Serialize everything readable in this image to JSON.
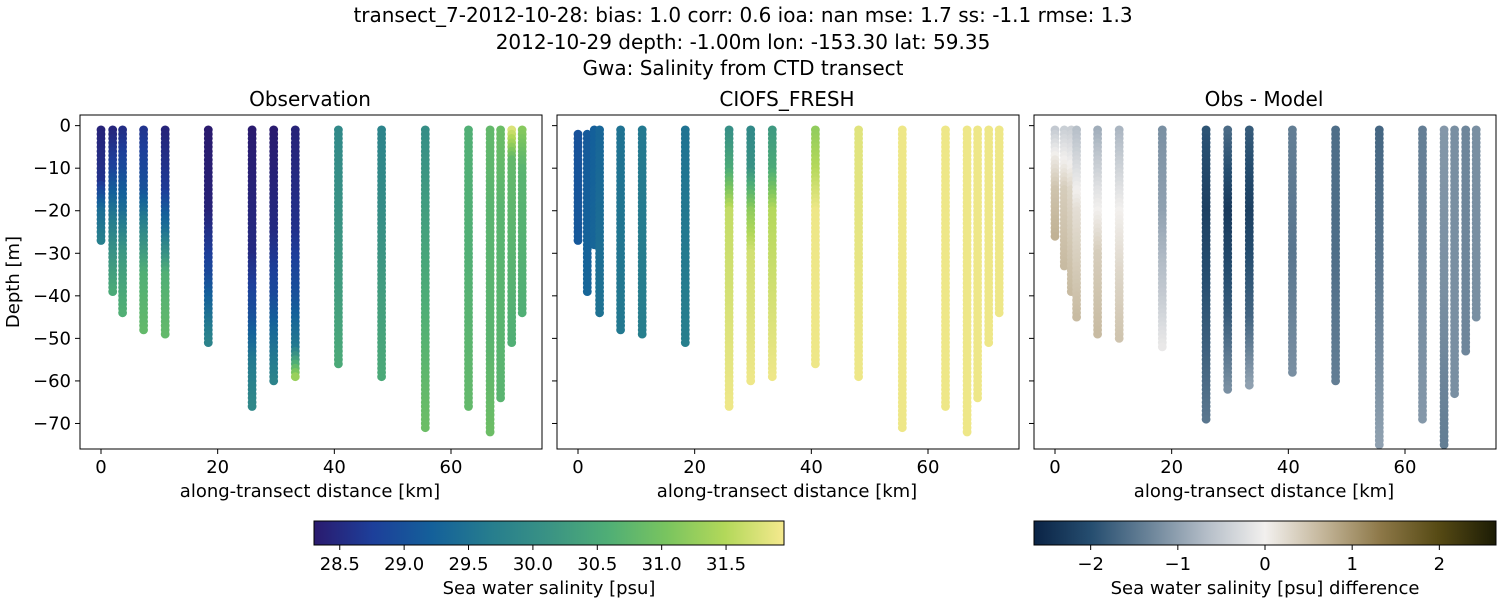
{
  "figure": {
    "title_line1": "transect_7-2012-10-28: bias: 1.0  corr: 0.6  ioa: nan  mse: 1.7  ss: -1.1  rmse: 1.3",
    "title_line2": "2012-10-29 depth: -1.00m lon: -153.30 lat: 59.35",
    "title_line3": "Gwa: Salinity from CTD transect"
  },
  "chart_data": [
    {
      "type": "scatter",
      "title": "Observation",
      "xlabel": "along-transect distance [km]",
      "ylabel": "Depth [m]",
      "xlim": [
        -3.6,
        75.6
      ],
      "ylim": [
        -76,
        2.5
      ],
      "xticks": [
        0,
        20,
        40,
        60
      ],
      "yticks": [
        0,
        -10,
        -20,
        -30,
        -40,
        -50,
        -60,
        -70
      ],
      "colorbar": "salinity",
      "profiles": [
        {
          "x": 0.0,
          "ybottom": -27,
          "stops": [
            [
              0,
              28.4
            ],
            [
              13,
              28.6
            ],
            [
              20,
              29.4
            ],
            [
              27,
              29.7
            ]
          ]
        },
        {
          "x": 2.0,
          "ybottom": -39,
          "stops": [
            [
              0,
              28.4
            ],
            [
              10,
              28.8
            ],
            [
              20,
              29.5
            ],
            [
              30,
              30.1
            ],
            [
              39,
              30.5
            ]
          ]
        },
        {
          "x": 3.7,
          "ybottom": -44,
          "stops": [
            [
              0,
              28.5
            ],
            [
              10,
              28.9
            ],
            [
              20,
              29.4
            ],
            [
              30,
              30.2
            ],
            [
              44,
              30.6
            ]
          ]
        },
        {
          "x": 7.3,
          "ybottom": -48,
          "stops": [
            [
              0,
              28.6
            ],
            [
              15,
              29.0
            ],
            [
              25,
              29.9
            ],
            [
              35,
              30.6
            ],
            [
              48,
              30.8
            ]
          ]
        },
        {
          "x": 11.0,
          "ybottom": -49,
          "stops": [
            [
              0,
              28.4
            ],
            [
              15,
              28.7
            ],
            [
              25,
              29.5
            ],
            [
              35,
              30.6
            ],
            [
              49,
              30.8
            ]
          ]
        },
        {
          "x": 18.4,
          "ybottom": -51,
          "stops": [
            [
              0,
              28.3
            ],
            [
              20,
              28.4
            ],
            [
              35,
              28.9
            ],
            [
              45,
              29.5
            ],
            [
              51,
              29.8
            ]
          ]
        },
        {
          "x": 25.9,
          "ybottom": -66,
          "stops": [
            [
              0,
              28.3
            ],
            [
              30,
              28.5
            ],
            [
              45,
              29.0
            ],
            [
              55,
              29.6
            ],
            [
              66,
              29.9
            ]
          ]
        },
        {
          "x": 29.6,
          "ybottom": -60,
          "stops": [
            [
              0,
              28.3
            ],
            [
              25,
              28.5
            ],
            [
              40,
              28.9
            ],
            [
              50,
              29.4
            ],
            [
              60,
              29.8
            ]
          ]
        },
        {
          "x": 33.3,
          "ybottom": -59,
          "stops": [
            [
              0,
              28.4
            ],
            [
              25,
              28.6
            ],
            [
              40,
              29.0
            ],
            [
              52,
              29.6
            ],
            [
              59,
              31.3
            ]
          ]
        },
        {
          "x": 40.7,
          "ybottom": -56,
          "stops": [
            [
              0,
              29.9
            ],
            [
              20,
              30.1
            ],
            [
              40,
              30.3
            ],
            [
              56,
              30.5
            ]
          ]
        },
        {
          "x": 48.1,
          "ybottom": -59,
          "stops": [
            [
              0,
              29.8
            ],
            [
              20,
              30.0
            ],
            [
              40,
              30.3
            ],
            [
              59,
              30.5
            ]
          ]
        },
        {
          "x": 55.6,
          "ybottom": -71,
          "stops": [
            [
              0,
              30.0
            ],
            [
              20,
              30.3
            ],
            [
              45,
              30.6
            ],
            [
              71,
              30.9
            ]
          ]
        },
        {
          "x": 63.0,
          "ybottom": -66,
          "stops": [
            [
              0,
              30.6
            ],
            [
              30,
              30.6
            ],
            [
              66,
              30.8
            ]
          ]
        },
        {
          "x": 66.7,
          "ybottom": -72,
          "stops": [
            [
              0,
              30.8
            ],
            [
              20,
              30.7
            ],
            [
              50,
              30.7
            ],
            [
              72,
              30.9
            ]
          ]
        },
        {
          "x": 68.5,
          "ybottom": -64,
          "stops": [
            [
              0,
              30.9
            ],
            [
              20,
              30.7
            ],
            [
              64,
              30.7
            ]
          ]
        },
        {
          "x": 70.4,
          "ybottom": -51,
          "stops": [
            [
              0,
              31.9
            ],
            [
              8,
              30.8
            ],
            [
              51,
              30.6
            ]
          ]
        },
        {
          "x": 72.2,
          "ybottom": -44,
          "stops": [
            [
              0,
              31.2
            ],
            [
              10,
              30.7
            ],
            [
              44,
              30.6
            ]
          ]
        }
      ]
    },
    {
      "type": "scatter",
      "title": "CIOFS_FRESH",
      "xlabel": "along-transect distance [km]",
      "xlim": [
        -3.6,
        75.6
      ],
      "ylim": [
        -76,
        2.5
      ],
      "xticks": [
        0,
        20,
        40,
        60
      ],
      "colorbar": "salinity",
      "profiles": [
        {
          "x": 0.0,
          "ytop": -2,
          "ybottom": -27,
          "stops": [
            [
              0,
              29.0
            ],
            [
              27,
              29.1
            ]
          ]
        },
        {
          "x": 1.6,
          "ytop": -2,
          "ybottom": -39,
          "stops": [
            [
              0,
              29.1
            ],
            [
              39,
              29.3
            ]
          ]
        },
        {
          "x": 2.8,
          "ytop": -1,
          "ybottom": -28,
          "stops": [
            [
              0,
              29.2
            ],
            [
              28,
              29.3
            ]
          ]
        },
        {
          "x": 3.7,
          "ybottom": -44,
          "stops": [
            [
              0,
              29.3
            ],
            [
              44,
              29.5
            ]
          ]
        },
        {
          "x": 7.3,
          "ybottom": -48,
          "stops": [
            [
              0,
              29.5
            ],
            [
              48,
              29.6
            ]
          ]
        },
        {
          "x": 11.0,
          "ybottom": -49,
          "stops": [
            [
              0,
              29.6
            ],
            [
              49,
              29.7
            ]
          ]
        },
        {
          "x": 18.4,
          "ybottom": -51,
          "stops": [
            [
              0,
              29.5
            ],
            [
              51,
              29.7
            ]
          ]
        },
        {
          "x": 25.9,
          "ybottom": -66,
          "stops": [
            [
              0,
              30.0
            ],
            [
              10,
              30.5
            ],
            [
              20,
              31.6
            ],
            [
              66,
              31.9
            ]
          ]
        },
        {
          "x": 29.6,
          "ybottom": -60,
          "stops": [
            [
              0,
              29.9
            ],
            [
              10,
              30.1
            ],
            [
              20,
              31.2
            ],
            [
              30,
              31.7
            ],
            [
              60,
              31.9
            ]
          ]
        },
        {
          "x": 33.3,
          "ybottom": -59,
          "stops": [
            [
              0,
              30.2
            ],
            [
              10,
              30.5
            ],
            [
              20,
              31.5
            ],
            [
              59,
              31.9
            ]
          ]
        },
        {
          "x": 40.7,
          "ybottom": -56,
          "stops": [
            [
              0,
              31.2
            ],
            [
              10,
              31.5
            ],
            [
              20,
              31.9
            ],
            [
              56,
              31.9
            ]
          ]
        },
        {
          "x": 48.1,
          "ybottom": -59,
          "stops": [
            [
              0,
              31.8
            ],
            [
              59,
              31.9
            ]
          ]
        },
        {
          "x": 55.6,
          "ybottom": -71,
          "stops": [
            [
              0,
              31.9
            ],
            [
              71,
              31.9
            ]
          ]
        },
        {
          "x": 63.0,
          "ybottom": -66,
          "stops": [
            [
              0,
              31.9
            ],
            [
              66,
              31.9
            ]
          ]
        },
        {
          "x": 66.7,
          "ybottom": -72,
          "stops": [
            [
              0,
              31.9
            ],
            [
              72,
              31.9
            ]
          ]
        },
        {
          "x": 68.5,
          "ybottom": -64,
          "stops": [
            [
              0,
              31.9
            ],
            [
              64,
              31.9
            ]
          ]
        },
        {
          "x": 70.4,
          "ybottom": -51,
          "stops": [
            [
              0,
              31.9
            ],
            [
              51,
              31.9
            ]
          ]
        },
        {
          "x": 72.2,
          "ybottom": -44,
          "stops": [
            [
              0,
              31.9
            ],
            [
              44,
              31.9
            ]
          ]
        }
      ]
    },
    {
      "type": "scatter",
      "title": "Obs - Model",
      "xlabel": "along-transect distance [km]",
      "xlim": [
        -3.6,
        75.6
      ],
      "ylim": [
        -76,
        2.5
      ],
      "xticks": [
        0,
        20,
        40,
        60
      ],
      "colorbar": "difference",
      "profiles": [
        {
          "x": 0.0,
          "ybottom": -26,
          "stops": [
            [
              0,
              -0.6
            ],
            [
              8,
              0.1
            ],
            [
              15,
              0.5
            ],
            [
              26,
              0.7
            ]
          ]
        },
        {
          "x": 1.6,
          "ybottom": -33,
          "stops": [
            [
              0,
              -0.5
            ],
            [
              15,
              0.4
            ],
            [
              33,
              0.6
            ]
          ]
        },
        {
          "x": 2.8,
          "ybottom": -39,
          "stops": [
            [
              0,
              -0.5
            ],
            [
              15,
              0.3
            ],
            [
              39,
              0.6
            ]
          ]
        },
        {
          "x": 3.7,
          "ybottom": -45,
          "stops": [
            [
              0,
              -0.7
            ],
            [
              20,
              0.2
            ],
            [
              45,
              0.6
            ]
          ]
        },
        {
          "x": 7.3,
          "ybottom": -49,
          "stops": [
            [
              0,
              -0.9
            ],
            [
              15,
              -0.2
            ],
            [
              30,
              0.4
            ],
            [
              49,
              0.6
            ]
          ]
        },
        {
          "x": 11.0,
          "ybottom": -50,
          "stops": [
            [
              0,
              -0.8
            ],
            [
              20,
              0.0
            ],
            [
              35,
              0.3
            ],
            [
              50,
              0.5
            ]
          ]
        },
        {
          "x": 18.4,
          "ybottom": -52,
          "stops": [
            [
              0,
              -1.2
            ],
            [
              20,
              -1.0
            ],
            [
              40,
              -0.5
            ],
            [
              52,
              -0.1
            ]
          ]
        },
        {
          "x": 25.9,
          "ybottom": -69,
          "stops": [
            [
              0,
              -1.9
            ],
            [
              20,
              -2.2
            ],
            [
              50,
              -1.8
            ],
            [
              69,
              -1.5
            ]
          ]
        },
        {
          "x": 29.6,
          "ybottom": -62,
          "stops": [
            [
              0,
              -1.6
            ],
            [
              20,
              -2.3
            ],
            [
              45,
              -1.8
            ],
            [
              62,
              -1.2
            ]
          ]
        },
        {
          "x": 33.3,
          "ybottom": -61,
          "stops": [
            [
              0,
              -1.8
            ],
            [
              20,
              -2.2
            ],
            [
              45,
              -1.7
            ],
            [
              61,
              -1.0
            ]
          ]
        },
        {
          "x": 40.7,
          "ybottom": -58,
          "stops": [
            [
              0,
              -1.4
            ],
            [
              30,
              -1.5
            ],
            [
              58,
              -1.2
            ]
          ]
        },
        {
          "x": 48.1,
          "ybottom": -60,
          "stops": [
            [
              0,
              -1.6
            ],
            [
              30,
              -1.6
            ],
            [
              60,
              -1.4
            ]
          ]
        },
        {
          "x": 55.6,
          "ybottom": -75,
          "stops": [
            [
              0,
              -1.7
            ],
            [
              30,
              -1.5
            ],
            [
              75,
              -1.0
            ]
          ]
        },
        {
          "x": 63.0,
          "ybottom": -69,
          "stops": [
            [
              0,
              -1.4
            ],
            [
              30,
              -1.3
            ],
            [
              69,
              -1.1
            ]
          ]
        },
        {
          "x": 66.7,
          "ybottom": -75,
          "stops": [
            [
              0,
              -1.1
            ],
            [
              40,
              -1.2
            ],
            [
              75,
              -1.4
            ]
          ]
        },
        {
          "x": 68.5,
          "ybottom": -63,
          "stops": [
            [
              0,
              -1.2
            ],
            [
              30,
              -1.2
            ],
            [
              63,
              -1.2
            ]
          ]
        },
        {
          "x": 70.4,
          "ybottom": -53,
          "stops": [
            [
              0,
              -1.3
            ],
            [
              30,
              -1.3
            ],
            [
              53,
              -1.3
            ]
          ]
        },
        {
          "x": 72.2,
          "ybottom": -45,
          "stops": [
            [
              0,
              -1.2
            ],
            [
              45,
              -1.2
            ]
          ]
        }
      ]
    }
  ],
  "colorbars": {
    "salinity": {
      "label": "Sea water salinity [psu]",
      "min": 28.3,
      "max": 31.95,
      "ticks": [
        28.5,
        29.0,
        29.5,
        30.0,
        30.5,
        31.0,
        31.5
      ],
      "tick_labels": [
        "28.5",
        "29.0",
        "29.5",
        "30.0",
        "30.5",
        "31.0",
        "31.5"
      ],
      "colors": [
        "#2a1a6e",
        "#1d3f9a",
        "#14609a",
        "#267d8e",
        "#3a9384",
        "#4fae76",
        "#79c45f",
        "#b3d85a",
        "#f5e98e"
      ]
    },
    "difference": {
      "label": "Sea water salinity [psu] difference",
      "min": -2.65,
      "max": 2.65,
      "ticks": [
        -2,
        -1,
        0,
        1,
        2
      ],
      "tick_labels": [
        "−2",
        "−1",
        "0",
        "1",
        "2"
      ],
      "colors": [
        "#0a2345",
        "#264e70",
        "#6b8499",
        "#b5bec8",
        "#f2f0ee",
        "#c4b69a",
        "#8d7848",
        "#564a14",
        "#1c1c05"
      ]
    }
  }
}
